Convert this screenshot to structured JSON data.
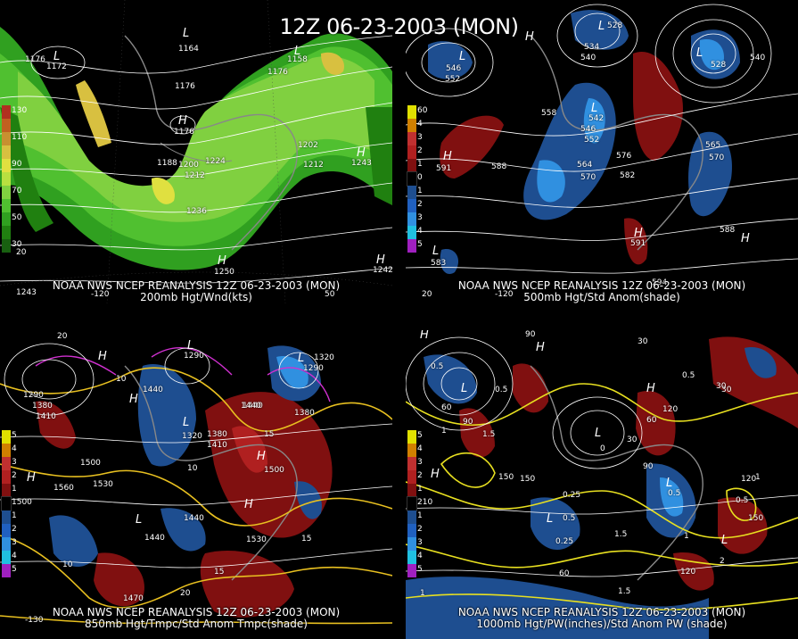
{
  "title": "12Z 06-23-2003 (MON)",
  "panels": [
    {
      "id": "p200",
      "caption1": "NOAA NWS NCEP REANALYSIS 12Z 06-23-2003 (MON)",
      "caption2": "200mb Hgt/Wnd(kts)",
      "legend": [
        {
          "label": "130",
          "color": "#b03020"
        },
        {
          "label": "",
          "color": "#c06020"
        },
        {
          "label": "110",
          "color": "#c89030"
        },
        {
          "label": "",
          "color": "#d8c040"
        },
        {
          "label": "90",
          "color": "#e0e040"
        },
        {
          "label": "",
          "color": "#b8e040"
        },
        {
          "label": "70",
          "color": "#80d040"
        },
        {
          "label": "",
          "color": "#50c030"
        },
        {
          "label": "50",
          "color": "#30a020"
        },
        {
          "label": "",
          "color": "#208010"
        },
        {
          "label": "30",
          "color": "#186010"
        }
      ],
      "labels": [
        "1176",
        "1172",
        "1164",
        "1158",
        "1176",
        "1176",
        "1176",
        "1188",
        "1200",
        "1212",
        "1224",
        "1236",
        "1202",
        "1212",
        "1243",
        "1250",
        "1242",
        "1243",
        "20",
        "-120",
        "50"
      ],
      "centers": [
        "L",
        "L",
        "L",
        "H",
        "H",
        "H",
        "H"
      ]
    },
    {
      "id": "p500",
      "caption1": "NOAA NWS NCEP REANALYSIS 12Z 06-23-2003 (MON)",
      "caption2": "500mb Hgt/Std Anom(shade)",
      "legend": [
        {
          "label": "60",
          "color": "#e0e000"
        },
        {
          "label": "4",
          "color": "#d08000"
        },
        {
          "label": "3",
          "color": "#c03030"
        },
        {
          "label": "2",
          "color": "#b02020"
        },
        {
          "label": "1",
          "color": "#801010"
        },
        {
          "label": "0",
          "color": "#000000"
        },
        {
          "label": "1",
          "color": "#1e4e90"
        },
        {
          "label": "2",
          "color": "#2060c0"
        },
        {
          "label": "3",
          "color": "#3090e0"
        },
        {
          "label": "4",
          "color": "#20c0e0"
        },
        {
          "label": "5",
          "color": "#a020c0"
        }
      ],
      "labels": [
        "546",
        "552",
        "534",
        "540",
        "528",
        "528",
        "540",
        "558",
        "546",
        "552",
        "542",
        "564",
        "570",
        "576",
        "582",
        "588",
        "591",
        "570",
        "565",
        "588",
        "591",
        "583",
        "594",
        "-120",
        "20"
      ],
      "centers": [
        "L",
        "L",
        "L",
        "L",
        "H",
        "H",
        "H",
        "H",
        "L"
      ]
    },
    {
      "id": "p850",
      "caption1": "NOAA NWS NCEP REANALYSIS 12Z 06-23-2003 (MON)",
      "caption2": "850mb Hgt/Tmpc/Std Anom Tmpc(shade)",
      "legend": [
        {
          "label": "5",
          "color": "#e0e000"
        },
        {
          "label": "4",
          "color": "#d08000"
        },
        {
          "label": "3",
          "color": "#c03030"
        },
        {
          "label": "2",
          "color": "#b02020"
        },
        {
          "label": "1",
          "color": "#801010"
        },
        {
          "label": "1500",
          "color": "#000000"
        },
        {
          "label": "1",
          "color": "#1e4e90"
        },
        {
          "label": "2",
          "color": "#2060c0"
        },
        {
          "label": "3",
          "color": "#3090e0"
        },
        {
          "label": "4",
          "color": "#20c0e0"
        },
        {
          "label": "5",
          "color": "#a020c0"
        }
      ],
      "labels": [
        "20",
        "10",
        "1290",
        "1380",
        "1410",
        "1440",
        "1290",
        "1320",
        "1380",
        "1440",
        "1410",
        "1380",
        "1500",
        "1530",
        "1560",
        "1500",
        "1440",
        "1440",
        "15",
        "15",
        "10",
        "1530",
        "1470",
        "20",
        "15",
        "10",
        "-130",
        "1290",
        "1320",
        "1440"
      ],
      "centers": [
        "H",
        "H",
        "H",
        "L",
        "L",
        "H",
        "L",
        "H",
        "L"
      ]
    },
    {
      "id": "p1000",
      "caption1": "NOAA NWS NCEP REANALYSIS 12Z 06-23-2003 (MON)",
      "caption2": "1000mb Hgt/PW(inches)/Std Anom PW (shade)",
      "legend": [
        {
          "label": "5",
          "color": "#e0e000"
        },
        {
          "label": "4",
          "color": "#d08000"
        },
        {
          "label": "3",
          "color": "#c03030"
        },
        {
          "label": "2",
          "color": "#b02020"
        },
        {
          "label": "1",
          "color": "#801010"
        },
        {
          "label": "210",
          "color": "#000000"
        },
        {
          "label": "1",
          "color": "#1e4e90"
        },
        {
          "label": "2",
          "color": "#2060c0"
        },
        {
          "label": "3",
          "color": "#3090e0"
        },
        {
          "label": "4",
          "color": "#20c0e0"
        },
        {
          "label": "5",
          "color": "#a020c0"
        }
      ],
      "labels": [
        "90",
        "0.5",
        "0.5",
        "1",
        "1.5",
        "60",
        "90",
        "150",
        "0.25",
        "0.5",
        "0.25",
        "1.5",
        "30",
        "0",
        "0.5",
        "30",
        "120",
        "60",
        "30",
        "90",
        "0.5",
        "1",
        "1.5",
        "0.5",
        "1",
        "2",
        "120",
        "150",
        "60",
        "1",
        "150",
        "120",
        "30"
      ],
      "centers": [
        "H",
        "H",
        "L",
        "L",
        "L",
        "H",
        "L",
        "L",
        "H"
      ]
    }
  ]
}
